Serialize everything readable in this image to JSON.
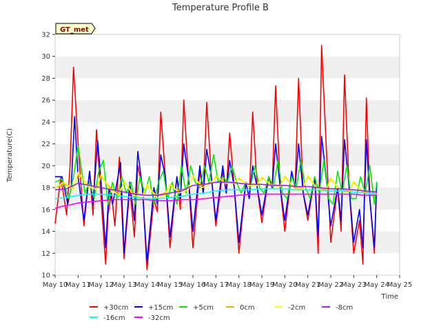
{
  "chart_data": {
    "type": "line",
    "title": "Temperature Profile B",
    "xlabel": "Time",
    "ylabel": "Temperature(C)",
    "annotation": "GT_met",
    "xlim": [
      10,
      25
    ],
    "ylim": [
      10,
      32
    ],
    "xticks": [
      10,
      11,
      12,
      13,
      14,
      15,
      16,
      17,
      18,
      19,
      20,
      21,
      22,
      23,
      24,
      25
    ],
    "xtick_labels": [
      "May 10",
      "May 11",
      "May 12",
      "May 13",
      "May 14",
      "May 15",
      "May 16",
      "May 17",
      "May 18",
      "May 19",
      "May 20",
      "May 21",
      "May 22",
      "May 23",
      "May 24",
      "May 25"
    ],
    "yticks": [
      10,
      12,
      14,
      16,
      18,
      20,
      22,
      24,
      26,
      28,
      30,
      32
    ],
    "ytick_labels": [
      "10",
      "12",
      "14",
      "16",
      "18",
      "20",
      "22",
      "24",
      "26",
      "28",
      "30",
      "32"
    ],
    "grid": "horizontal bands",
    "legend_position": "bottom",
    "series": [
      {
        "name": "+30cm",
        "color": "#ff0000",
        "x": [
          10.0,
          10.25,
          10.5,
          10.65,
          10.8,
          11.0,
          11.25,
          11.5,
          11.65,
          11.8,
          12.0,
          12.2,
          12.3,
          12.45,
          12.6,
          12.8,
          13.0,
          13.25,
          13.45,
          13.6,
          13.8,
          14.0,
          14.3,
          14.45,
          14.6,
          14.8,
          15.0,
          15.3,
          15.45,
          15.6,
          15.8,
          16.0,
          16.3,
          16.45,
          16.6,
          16.8,
          17.0,
          17.3,
          17.45,
          17.6,
          17.8,
          18.0,
          18.3,
          18.45,
          18.6,
          18.8,
          19.0,
          19.3,
          19.45,
          19.6,
          19.8,
          20.0,
          20.3,
          20.45,
          20.6,
          20.8,
          21.0,
          21.3,
          21.45,
          21.6,
          21.8,
          22.0,
          22.3,
          22.45,
          22.6,
          22.8,
          23.0,
          23.25,
          23.4,
          23.55,
          23.7,
          23.9,
          24.0
        ],
        "y": [
          14.7,
          19.0,
          15.5,
          20.0,
          29.0,
          22.0,
          14.5,
          19.5,
          15.5,
          23.3,
          17.0,
          11.0,
          15.5,
          17.5,
          14.5,
          20.8,
          11.5,
          18.0,
          13.5,
          20.0,
          18.0,
          10.5,
          17.0,
          15.8,
          24.9,
          19.0,
          12.5,
          19.0,
          16.0,
          26.0,
          19.0,
          12.5,
          19.5,
          17.5,
          25.8,
          19.0,
          14.5,
          19.5,
          17.5,
          23.0,
          18.0,
          12.0,
          18.5,
          17.0,
          24.9,
          18.0,
          14.8,
          19.0,
          18.0,
          27.3,
          18.0,
          14.0,
          19.5,
          18.0,
          28.0,
          17.5,
          15.0,
          19.0,
          12.0,
          31.0,
          22.0,
          13.0,
          18.0,
          14.0,
          28.3,
          18.0,
          12.0,
          15.0,
          11.0,
          26.2,
          17.0,
          12.0,
          18.5
        ]
      },
      {
        "name": "+15cm",
        "color": "#0000ff",
        "x": [
          10.0,
          10.3,
          10.55,
          10.7,
          10.85,
          11.0,
          11.25,
          11.5,
          11.65,
          11.85,
          12.0,
          12.2,
          12.35,
          12.5,
          12.65,
          12.85,
          13.0,
          13.25,
          13.45,
          13.6,
          13.8,
          14.0,
          14.3,
          14.45,
          14.6,
          14.8,
          15.0,
          15.3,
          15.45,
          15.6,
          15.8,
          16.0,
          16.3,
          16.45,
          16.6,
          16.8,
          17.0,
          17.3,
          17.45,
          17.6,
          17.8,
          18.0,
          18.3,
          18.45,
          18.6,
          18.8,
          19.0,
          19.3,
          19.45,
          19.6,
          19.8,
          20.0,
          20.3,
          20.45,
          20.6,
          20.8,
          21.0,
          21.3,
          21.45,
          21.6,
          21.8,
          22.0,
          22.3,
          22.45,
          22.6,
          22.8,
          23.0,
          23.25,
          23.4,
          23.55,
          23.7,
          23.9,
          24.0
        ],
        "y": [
          19.0,
          19.0,
          16.5,
          18.0,
          24.5,
          19.0,
          15.0,
          19.5,
          16.5,
          22.3,
          18.5,
          12.5,
          18.0,
          16.5,
          18.0,
          20.3,
          12.0,
          18.5,
          15.0,
          21.3,
          18.0,
          11.2,
          18.0,
          16.5,
          21.0,
          19.0,
          13.5,
          19.0,
          17.0,
          22.0,
          19.0,
          14.0,
          20.0,
          17.5,
          21.5,
          19.0,
          15.0,
          20.0,
          17.5,
          20.5,
          18.0,
          13.0,
          18.5,
          17.0,
          20.0,
          18.0,
          15.5,
          19.0,
          18.0,
          22.0,
          18.0,
          15.0,
          19.5,
          18.0,
          22.0,
          17.5,
          15.5,
          19.0,
          13.5,
          22.7,
          19.0,
          14.5,
          18.0,
          15.0,
          22.4,
          18.0,
          13.0,
          16.0,
          12.5,
          22.4,
          17.0,
          12.5,
          18.5
        ]
      },
      {
        "name": "+5cm",
        "color": "#00ee00",
        "x": [
          10.0,
          10.3,
          10.6,
          10.8,
          11.0,
          11.3,
          11.5,
          11.7,
          11.9,
          12.1,
          12.3,
          12.5,
          12.7,
          12.9,
          13.1,
          13.3,
          13.5,
          13.7,
          13.9,
          14.1,
          14.3,
          14.5,
          14.7,
          14.9,
          15.1,
          15.3,
          15.5,
          15.7,
          15.9,
          16.1,
          16.3,
          16.5,
          16.7,
          16.9,
          17.1,
          17.3,
          17.5,
          17.7,
          17.9,
          18.1,
          18.3,
          18.5,
          18.7,
          18.9,
          19.1,
          19.3,
          19.5,
          19.7,
          19.9,
          20.1,
          20.3,
          20.5,
          20.7,
          20.9,
          21.1,
          21.3,
          21.5,
          21.7,
          21.9,
          22.1,
          22.3,
          22.5,
          22.7,
          22.9,
          23.1,
          23.3,
          23.5,
          23.7,
          23.9,
          24.0
        ],
        "y": [
          18.5,
          18.8,
          17.0,
          19.0,
          21.8,
          17.5,
          18.5,
          17.0,
          19.5,
          20.5,
          16.5,
          18.5,
          17.0,
          19.0,
          17.5,
          18.5,
          16.5,
          19.0,
          17.5,
          19.0,
          16.5,
          18.5,
          19.5,
          17.0,
          18.5,
          16.5,
          20.0,
          17.5,
          20.0,
          18.5,
          18.0,
          20.0,
          18.5,
          21.0,
          18.5,
          19.0,
          18.5,
          20.0,
          18.5,
          17.5,
          18.5,
          18.0,
          20.0,
          18.0,
          17.5,
          19.0,
          18.0,
          20.5,
          17.5,
          17.0,
          19.0,
          18.0,
          20.5,
          18.0,
          17.0,
          19.0,
          17.5,
          20.5,
          17.0,
          16.5,
          19.5,
          17.5,
          20.0,
          17.0,
          17.0,
          19.0,
          17.5,
          20.0,
          16.5,
          18.5
        ]
      },
      {
        "name": "0cm",
        "color": "#ffa500",
        "x": [
          10.0,
          10.4,
          10.8,
          11.0,
          11.4,
          11.8,
          12.0,
          12.4,
          12.8,
          13.0,
          13.4,
          13.8,
          14.0,
          14.4,
          14.8,
          15.0,
          15.4,
          15.8,
          16.0,
          16.4,
          16.8,
          17.0,
          17.4,
          17.8,
          18.0,
          18.4,
          18.8,
          19.0,
          19.4,
          19.8,
          20.0,
          20.4,
          20.8,
          21.0,
          21.4,
          21.8,
          22.0,
          22.4,
          22.8,
          23.0,
          23.4,
          23.8,
          24.0
        ],
        "y": [
          18.0,
          18.3,
          18.0,
          19.2,
          18.3,
          18.0,
          19.0,
          18.0,
          17.5,
          18.5,
          17.5,
          17.3,
          18.2,
          17.3,
          17.5,
          18.2,
          17.7,
          18.0,
          19.0,
          18.2,
          18.5,
          19.0,
          18.5,
          18.5,
          18.8,
          18.3,
          18.3,
          18.9,
          18.3,
          18.2,
          19.0,
          18.0,
          18.0,
          19.0,
          18.0,
          17.8,
          18.8,
          17.8,
          17.7,
          18.5,
          17.6,
          17.5,
          17.5
        ]
      },
      {
        "name": "-2cm",
        "color": "#ffff00",
        "x": [
          10.0,
          10.4,
          10.8,
          11.0,
          11.4,
          11.8,
          12.0,
          12.4,
          12.8,
          13.0,
          13.4,
          13.8,
          14.0,
          14.4,
          14.8,
          15.0,
          15.4,
          15.8,
          16.0,
          16.4,
          16.8,
          17.0,
          17.4,
          17.8,
          18.0,
          18.4,
          18.8,
          19.0,
          19.4,
          19.8,
          20.0,
          20.4,
          20.8,
          21.0,
          21.4,
          21.8,
          22.0,
          22.4,
          22.8,
          23.0,
          23.4,
          23.8,
          24.0
        ],
        "y": [
          18.0,
          18.5,
          17.8,
          19.4,
          18.2,
          17.8,
          19.2,
          17.8,
          17.3,
          18.6,
          17.3,
          17.1,
          18.3,
          17.1,
          17.3,
          18.3,
          17.5,
          17.8,
          19.1,
          18.0,
          18.4,
          19.1,
          18.4,
          18.4,
          18.9,
          18.2,
          18.2,
          19.0,
          18.2,
          18.1,
          19.1,
          17.9,
          17.9,
          19.1,
          17.9,
          17.7,
          18.9,
          17.7,
          17.6,
          18.6,
          17.5,
          17.4,
          17.4
        ]
      },
      {
        "name": "-8cm",
        "color": "#a020f0",
        "x": [
          10.0,
          10.5,
          11.0,
          11.5,
          12.0,
          12.5,
          13.0,
          13.5,
          14.0,
          14.5,
          15.0,
          15.5,
          16.0,
          16.5,
          17.0,
          17.5,
          18.0,
          18.5,
          19.0,
          19.5,
          20.0,
          20.5,
          21.0,
          21.5,
          22.0,
          22.5,
          23.0,
          23.5,
          24.0
        ],
        "y": [
          17.8,
          17.9,
          18.4,
          18.2,
          18.0,
          17.8,
          17.6,
          17.4,
          17.3,
          17.3,
          17.5,
          17.7,
          18.2,
          18.3,
          18.5,
          18.5,
          18.4,
          18.3,
          18.3,
          18.2,
          18.2,
          18.1,
          18.1,
          18.0,
          17.9,
          17.9,
          17.8,
          17.7,
          17.6
        ]
      },
      {
        "name": "-16cm",
        "color": "#00ffff",
        "x": [
          10.0,
          10.5,
          11.0,
          11.5,
          12.0,
          12.5,
          13.0,
          13.5,
          14.0,
          14.5,
          15.0,
          15.5,
          16.0,
          16.5,
          17.0,
          17.5,
          18.0,
          18.5,
          19.0,
          19.5,
          20.0,
          20.5,
          21.0,
          21.5,
          22.0,
          22.5,
          23.0,
          23.5,
          24.0
        ],
        "y": [
          17.0,
          17.1,
          17.3,
          17.4,
          17.4,
          17.3,
          17.2,
          17.1,
          17.0,
          17.0,
          17.1,
          17.2,
          17.4,
          17.5,
          17.7,
          17.8,
          17.8,
          17.8,
          17.9,
          17.9,
          17.9,
          17.8,
          17.8,
          17.8,
          17.7,
          17.7,
          17.6,
          17.5,
          17.4
        ]
      },
      {
        "name": "-32cm",
        "color": "#ff00ff",
        "x": [
          10.0,
          10.3,
          10.6,
          11.0,
          11.5,
          12.0,
          12.5,
          13.0,
          13.5,
          14.0,
          14.5,
          15.0,
          15.5,
          16.0,
          16.5,
          17.0,
          17.5,
          18.0,
          18.5,
          19.0,
          19.5,
          20.0,
          20.5,
          21.0,
          21.5,
          22.0,
          22.5,
          23.0,
          23.5,
          24.0
        ],
        "y": [
          16.1,
          16.3,
          16.4,
          16.6,
          16.7,
          16.8,
          16.9,
          16.9,
          16.9,
          16.9,
          16.8,
          16.8,
          16.9,
          16.9,
          17.0,
          17.1,
          17.2,
          17.3,
          17.4,
          17.4,
          17.4,
          17.4,
          17.4,
          17.4,
          17.4,
          17.4,
          17.4,
          17.4,
          17.3,
          17.3
        ]
      }
    ]
  }
}
